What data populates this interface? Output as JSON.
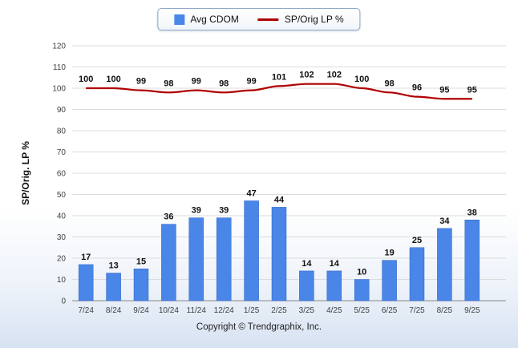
{
  "legend": {
    "items": [
      {
        "label": "Avg CDOM",
        "color": "#4a86e8",
        "type": "bar"
      },
      {
        "label": "SP/Orig LP %",
        "color": "#b00000",
        "type": "line"
      }
    ]
  },
  "footer": "Copyright © Trendgraphix, Inc.",
  "chart_data": {
    "type": "bar+line",
    "categories": [
      "7/24",
      "8/24",
      "9/24",
      "10/24",
      "11/24",
      "12/24",
      "1/25",
      "2/25",
      "3/25",
      "4/25",
      "5/25",
      "6/25",
      "7/25",
      "8/25",
      "9/25"
    ],
    "series": [
      {
        "name": "Avg CDOM",
        "type": "bar",
        "color": "#4a86e8",
        "values": [
          17,
          13,
          15,
          36,
          39,
          39,
          47,
          44,
          14,
          14,
          10,
          19,
          25,
          34,
          38
        ]
      },
      {
        "name": "SP/Orig LP %",
        "type": "line",
        "color": "#b00000",
        "values": [
          100,
          100,
          99,
          98,
          99,
          98,
          99,
          101,
          102,
          102,
          100,
          98,
          96,
          95,
          95
        ]
      }
    ],
    "title": "",
    "xlabel": "",
    "ylabel": "SP/Orig. LP %",
    "ylim": [
      0,
      120
    ],
    "ytick_step": 10,
    "grid": true,
    "legend_position": "top-center",
    "label_color": "#111111",
    "gridline_color": "#dcdcdc",
    "axis_color": "#8a8a8a"
  }
}
